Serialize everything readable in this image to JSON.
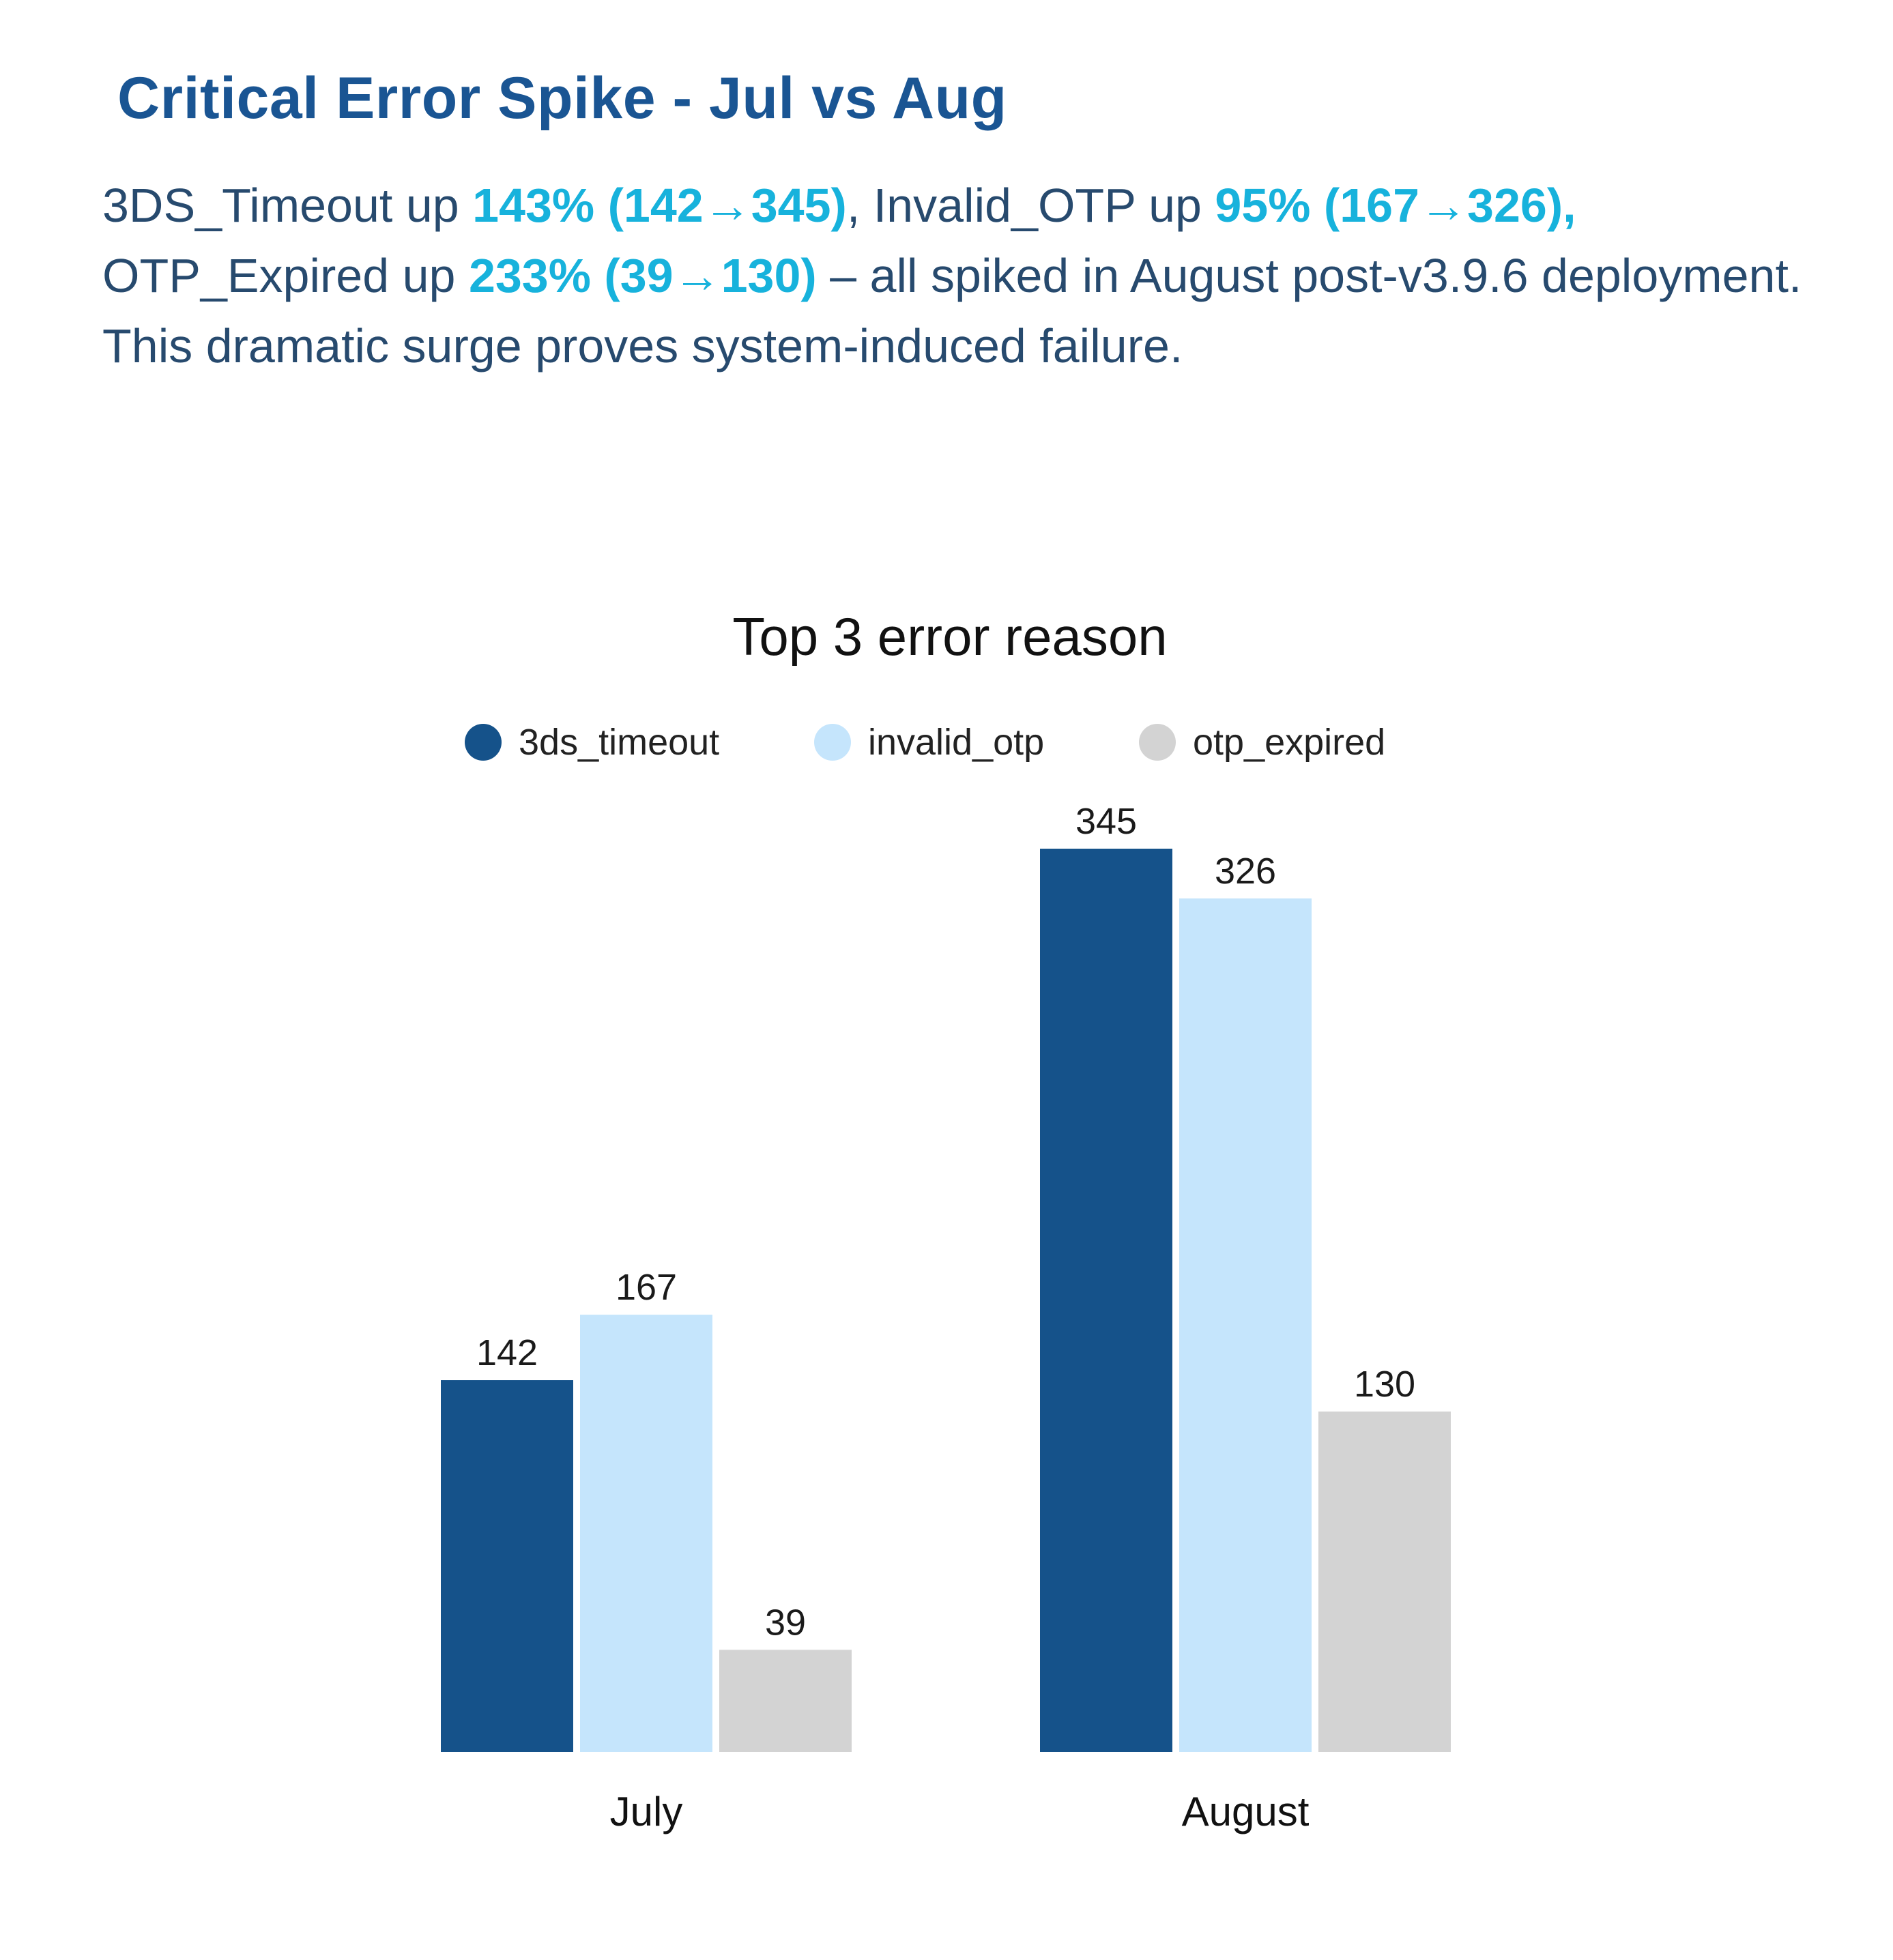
{
  "header": {
    "title": "Critical Error Spike - Jul vs Aug"
  },
  "summary": {
    "seg1": "3DS_Timeout up ",
    "hl1": "143% (142→345)",
    "seg2": ", Invalid_OTP up ",
    "hl2": "95% (167→326),",
    "seg3": " OTP_Expired up ",
    "hl3": "233% (39→130)",
    "seg4": " – all spiked in August post-v3.9.6 deployment. This dramatic surge proves system-induced failure."
  },
  "colors": {
    "title": "#1a5593",
    "body_text": "#274a6e",
    "highlight": "#17b2dc"
  },
  "chart_data": {
    "type": "bar",
    "title": "Top 3 error reason",
    "categories": [
      "July",
      "August"
    ],
    "series": [
      {
        "name": "3ds_timeout",
        "color": "#15528a",
        "values": [
          142,
          345
        ]
      },
      {
        "name": "invalid_otp",
        "color": "#c5e5fc",
        "values": [
          167,
          326
        ]
      },
      {
        "name": "otp_expired",
        "color": "#d3d3d3",
        "values": [
          39,
          130
        ]
      }
    ],
    "ylim": [
      0,
      345
    ],
    "xlabel": "",
    "ylabel": "",
    "grid": false,
    "legend": "top-center",
    "data_labels": true
  }
}
